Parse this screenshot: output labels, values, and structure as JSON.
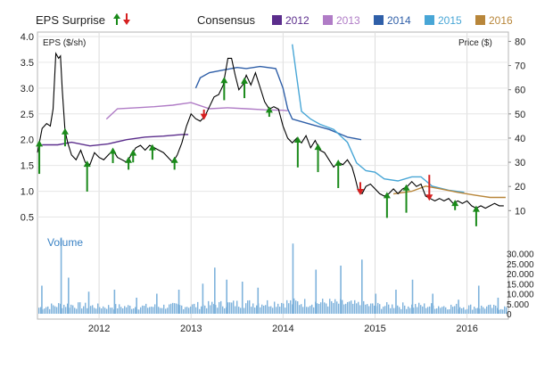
{
  "chart_data": {
    "type": "line",
    "title": "EPS Surprise",
    "legend": {
      "label": "Consensus",
      "entries": [
        {
          "name": "2012",
          "color": "#5b2d8c"
        },
        {
          "name": "2013",
          "color": "#b07cc6"
        },
        {
          "name": "2014",
          "color": "#2f5fa8"
        },
        {
          "name": "2015",
          "color": "#48a6d6"
        },
        {
          "name": "2016",
          "color": "#b8863a"
        }
      ],
      "placement": "top"
    },
    "eps_axis": {
      "label": "EPS ($/sh)",
      "side": "left",
      "range": [
        0.25,
        4.0
      ],
      "ticks": [
        "4.0",
        "3.5",
        "3.0",
        "2.5",
        "2.0",
        "1.5",
        "1.0",
        "0.5"
      ]
    },
    "price_axis": {
      "label": "Price ($)",
      "side": "right",
      "range": [
        2,
        82
      ],
      "ticks": [
        "80",
        "70",
        "60",
        "50",
        "40",
        "30",
        "20",
        "10"
      ]
    },
    "volume_axis": {
      "label": "Volume",
      "side": "right",
      "range": [
        0,
        40000
      ],
      "ticks": [
        "30.000",
        "25.000",
        "20.000",
        "15.000",
        "10.000",
        "5.000",
        "0"
      ]
    },
    "x_axis": {
      "range": [
        2011.33,
        2016.45
      ],
      "ticks": [
        "2012",
        "2013",
        "2014",
        "2015",
        "2016"
      ]
    },
    "grid": true,
    "price_series": {
      "name": "Price",
      "color": "#000000",
      "points": [
        [
          2011.33,
          34
        ],
        [
          2011.38,
          44
        ],
        [
          2011.43,
          46
        ],
        [
          2011.47,
          45
        ],
        [
          2011.5,
          52
        ],
        [
          2011.53,
          75
        ],
        [
          2011.56,
          73
        ],
        [
          2011.58,
          74
        ],
        [
          2011.6,
          60
        ],
        [
          2011.63,
          43
        ],
        [
          2011.66,
          38
        ],
        [
          2011.7,
          33
        ],
        [
          2011.75,
          31
        ],
        [
          2011.8,
          35
        ],
        [
          2011.85,
          30
        ],
        [
          2011.9,
          29
        ],
        [
          2011.95,
          34
        ],
        [
          2012.0,
          32
        ],
        [
          2012.05,
          31
        ],
        [
          2012.1,
          33
        ],
        [
          2012.15,
          35
        ],
        [
          2012.2,
          32
        ],
        [
          2012.25,
          31
        ],
        [
          2012.3,
          30
        ],
        [
          2012.35,
          33
        ],
        [
          2012.4,
          36
        ],
        [
          2012.45,
          37
        ],
        [
          2012.5,
          35
        ],
        [
          2012.55,
          37
        ],
        [
          2012.6,
          36
        ],
        [
          2012.65,
          35
        ],
        [
          2012.7,
          34
        ],
        [
          2012.75,
          32
        ],
        [
          2012.8,
          30
        ],
        [
          2012.85,
          33
        ],
        [
          2012.9,
          38
        ],
        [
          2012.95,
          45
        ],
        [
          2013.0,
          50
        ],
        [
          2013.05,
          48
        ],
        [
          2013.1,
          47
        ],
        [
          2013.15,
          49
        ],
        [
          2013.2,
          53
        ],
        [
          2013.25,
          57
        ],
        [
          2013.3,
          58
        ],
        [
          2013.35,
          62
        ],
        [
          2013.4,
          73
        ],
        [
          2013.44,
          73
        ],
        [
          2013.48,
          66
        ],
        [
          2013.52,
          60
        ],
        [
          2013.56,
          62
        ],
        [
          2013.6,
          66
        ],
        [
          2013.65,
          62
        ],
        [
          2013.7,
          67
        ],
        [
          2013.75,
          61
        ],
        [
          2013.8,
          55
        ],
        [
          2013.85,
          52
        ],
        [
          2013.9,
          53
        ],
        [
          2013.95,
          52
        ],
        [
          2014.0,
          45
        ],
        [
          2014.05,
          40
        ],
        [
          2014.1,
          38
        ],
        [
          2014.15,
          40
        ],
        [
          2014.2,
          38
        ],
        [
          2014.25,
          41
        ],
        [
          2014.3,
          36
        ],
        [
          2014.35,
          39
        ],
        [
          2014.4,
          35
        ],
        [
          2014.45,
          34
        ],
        [
          2014.5,
          31
        ],
        [
          2014.55,
          28
        ],
        [
          2014.6,
          30
        ],
        [
          2014.65,
          29
        ],
        [
          2014.7,
          31
        ],
        [
          2014.75,
          28
        ],
        [
          2014.78,
          24
        ],
        [
          2014.82,
          18
        ],
        [
          2014.86,
          17
        ],
        [
          2014.9,
          20
        ],
        [
          2014.95,
          21
        ],
        [
          2015.0,
          19
        ],
        [
          2015.05,
          17
        ],
        [
          2015.1,
          16
        ],
        [
          2015.15,
          17
        ],
        [
          2015.2,
          19
        ],
        [
          2015.25,
          17
        ],
        [
          2015.3,
          19
        ],
        [
          2015.35,
          20
        ],
        [
          2015.4,
          22
        ],
        [
          2015.45,
          20
        ],
        [
          2015.5,
          21
        ],
        [
          2015.55,
          16
        ],
        [
          2015.6,
          15
        ],
        [
          2015.65,
          14
        ],
        [
          2015.7,
          15
        ],
        [
          2015.75,
          14
        ],
        [
          2015.8,
          15
        ],
        [
          2015.85,
          13
        ],
        [
          2015.9,
          14
        ],
        [
          2015.95,
          13
        ],
        [
          2016.0,
          14
        ],
        [
          2016.05,
          12
        ],
        [
          2016.1,
          11
        ],
        [
          2016.15,
          12
        ],
        [
          2016.2,
          11
        ],
        [
          2016.25,
          12
        ],
        [
          2016.3,
          13
        ],
        [
          2016.35,
          12
        ],
        [
          2016.4,
          12
        ]
      ]
    },
    "consensus_series": [
      {
        "name": "2012",
        "color": "#5b2d8c",
        "points": [
          [
            2011.38,
            1.9
          ],
          [
            2011.55,
            1.9
          ],
          [
            2011.7,
            1.95
          ],
          [
            2011.9,
            1.88
          ],
          [
            2012.1,
            1.92
          ],
          [
            2012.3,
            2.0
          ],
          [
            2012.5,
            2.05
          ],
          [
            2012.7,
            2.07
          ],
          [
            2012.9,
            2.1
          ],
          [
            2012.97,
            2.1
          ]
        ]
      },
      {
        "name": "2013",
        "color": "#b07cc6",
        "points": [
          [
            2012.08,
            2.4
          ],
          [
            2012.2,
            2.6
          ],
          [
            2012.4,
            2.62
          ],
          [
            2012.6,
            2.64
          ],
          [
            2012.8,
            2.67
          ],
          [
            2013.0,
            2.72
          ],
          [
            2013.2,
            2.6
          ],
          [
            2013.4,
            2.62
          ],
          [
            2013.6,
            2.6
          ],
          [
            2013.8,
            2.58
          ],
          [
            2014.0,
            2.57
          ],
          [
            2014.05,
            2.56
          ]
        ]
      },
      {
        "name": "2014",
        "color": "#2f5fa8",
        "points": [
          [
            2013.05,
            3.0
          ],
          [
            2013.1,
            3.2
          ],
          [
            2013.2,
            3.3
          ],
          [
            2013.35,
            3.35
          ],
          [
            2013.5,
            3.4
          ],
          [
            2013.6,
            3.38
          ],
          [
            2013.75,
            3.42
          ],
          [
            2013.92,
            3.38
          ],
          [
            2014.0,
            3.0
          ],
          [
            2014.05,
            2.6
          ],
          [
            2014.1,
            2.4
          ],
          [
            2014.3,
            2.3
          ],
          [
            2014.5,
            2.2
          ],
          [
            2014.7,
            2.05
          ],
          [
            2014.85,
            2.0
          ]
        ]
      },
      {
        "name": "2015",
        "color": "#48a6d6",
        "points": [
          [
            2014.1,
            3.85
          ],
          [
            2014.15,
            3.2
          ],
          [
            2014.2,
            2.55
          ],
          [
            2014.3,
            2.4
          ],
          [
            2014.4,
            2.3
          ],
          [
            2014.55,
            2.2
          ],
          [
            2014.7,
            1.95
          ],
          [
            2014.8,
            1.55
          ],
          [
            2014.9,
            1.4
          ],
          [
            2015.0,
            1.37
          ],
          [
            2015.1,
            1.24
          ],
          [
            2015.25,
            1.2
          ],
          [
            2015.4,
            1.28
          ],
          [
            2015.5,
            1.28
          ],
          [
            2015.62,
            1.1
          ],
          [
            2015.8,
            1.02
          ],
          [
            2015.97,
            0.98
          ]
        ]
      },
      {
        "name": "2016",
        "color": "#b8863a",
        "points": [
          [
            2015.2,
            0.95
          ],
          [
            2015.4,
            1.0
          ],
          [
            2015.55,
            1.1
          ],
          [
            2015.7,
            1.05
          ],
          [
            2015.9,
            0.98
          ],
          [
            2016.1,
            0.92
          ],
          [
            2016.25,
            0.88
          ],
          [
            2016.42,
            0.88
          ]
        ]
      }
    ],
    "eps_surprises": [
      {
        "date": 2011.35,
        "direction": "up",
        "magnitude": 0.6
      },
      {
        "date": 2011.63,
        "direction": "up",
        "magnitude": 0.3
      },
      {
        "date": 2011.87,
        "direction": "up",
        "magnitude": 0.55
      },
      {
        "date": 2012.15,
        "direction": "up",
        "magnitude": 0.25
      },
      {
        "date": 2012.32,
        "direction": "up",
        "magnitude": 0.2
      },
      {
        "date": 2012.37,
        "direction": "up",
        "magnitude": 0.2
      },
      {
        "date": 2012.58,
        "direction": "up",
        "magnitude": 0.25
      },
      {
        "date": 2012.82,
        "direction": "up",
        "magnitude": 0.2
      },
      {
        "date": 2013.14,
        "direction": "down",
        "magnitude": 0.15
      },
      {
        "date": 2013.36,
        "direction": "up",
        "magnitude": 0.4
      },
      {
        "date": 2013.58,
        "direction": "up",
        "magnitude": 0.35
      },
      {
        "date": 2013.85,
        "direction": "up",
        "magnitude": 0.15
      },
      {
        "date": 2014.16,
        "direction": "up",
        "magnitude": 0.55
      },
      {
        "date": 2014.38,
        "direction": "up",
        "magnitude": 0.5
      },
      {
        "date": 2014.6,
        "direction": "up",
        "magnitude": 0.5
      },
      {
        "date": 2014.84,
        "direction": "down",
        "magnitude": 0.2
      },
      {
        "date": 2015.13,
        "direction": "up",
        "magnitude": 0.45
      },
      {
        "date": 2015.34,
        "direction": "up",
        "magnitude": 0.5
      },
      {
        "date": 2015.59,
        "direction": "down",
        "magnitude": 0.45
      },
      {
        "date": 2015.87,
        "direction": "up",
        "magnitude": 0.15
      },
      {
        "date": 2016.1,
        "direction": "up",
        "magnitude": 0.35
      }
    ],
    "volume_series": {
      "name": "Volume",
      "color": "#7fb3dc",
      "spikes": [
        [
          2011.37,
          14000
        ],
        [
          2011.58,
          38000
        ],
        [
          2011.66,
          18000
        ],
        [
          2011.88,
          11000
        ],
        [
          2012.16,
          12000
        ],
        [
          2012.4,
          8000
        ],
        [
          2012.62,
          10000
        ],
        [
          2012.86,
          12000
        ],
        [
          2013.12,
          15000
        ],
        [
          2013.25,
          23000
        ],
        [
          2013.38,
          17000
        ],
        [
          2013.55,
          16000
        ],
        [
          2013.72,
          13000
        ],
        [
          2014.1,
          35000
        ],
        [
          2014.35,
          22000
        ],
        [
          2014.62,
          24000
        ],
        [
          2014.85,
          27000
        ],
        [
          2015.0,
          10000
        ],
        [
          2015.22,
          12000
        ],
        [
          2015.4,
          17000
        ],
        [
          2015.62,
          10000
        ],
        [
          2015.9,
          7000
        ],
        [
          2016.12,
          14000
        ],
        [
          2016.33,
          8000
        ]
      ],
      "base": [
        [
          2011.33,
          3000
        ],
        [
          2011.6,
          4500
        ],
        [
          2012.0,
          3500
        ],
        [
          2012.5,
          3500
        ],
        [
          2013.0,
          4000
        ],
        [
          2013.5,
          5000
        ],
        [
          2014.0,
          5500
        ],
        [
          2014.5,
          5500
        ],
        [
          2015.0,
          4000
        ],
        [
          2015.5,
          4000
        ],
        [
          2016.0,
          3500
        ],
        [
          2016.45,
          3000
        ]
      ]
    }
  }
}
